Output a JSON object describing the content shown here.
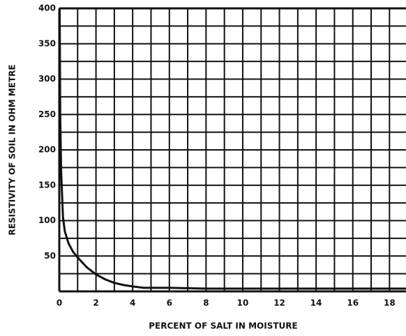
{
  "chart_data": {
    "type": "line",
    "x_label": "PERCENT OF SALT IN MOISTURE",
    "y_label": "RESISTIVITY OF SOIL IN OHM METRE",
    "x": [
      0.02,
      0.05,
      0.1,
      0.2,
      0.3,
      0.5,
      0.75,
      1,
      1.5,
      2,
      2.5,
      3,
      3.5,
      4,
      4.6,
      6,
      8,
      10,
      12,
      14,
      16,
      18,
      18.9
    ],
    "series": [
      {
        "color": "#111111",
        "values": [
          400,
          250,
          170,
          105,
          85,
          68,
          56,
          48,
          34,
          24,
          17,
          12,
          9,
          7,
          5,
          5,
          4,
          4,
          4,
          4,
          4,
          4,
          4
        ]
      }
    ],
    "xlim": [
      0,
      18.9
    ],
    "ylim": [
      0,
      400
    ],
    "xticks": [
      0,
      2,
      4,
      6,
      8,
      10,
      12,
      14,
      16,
      18
    ],
    "yticks": [
      50,
      100,
      150,
      200,
      250,
      300,
      350,
      400
    ],
    "x_minor_ticks": [
      1,
      3,
      5,
      7,
      9,
      11,
      13,
      15,
      17
    ],
    "y_minor_ticks": [
      0,
      25,
      75,
      125,
      175,
      225,
      275,
      325,
      375
    ],
    "grid": true
  }
}
